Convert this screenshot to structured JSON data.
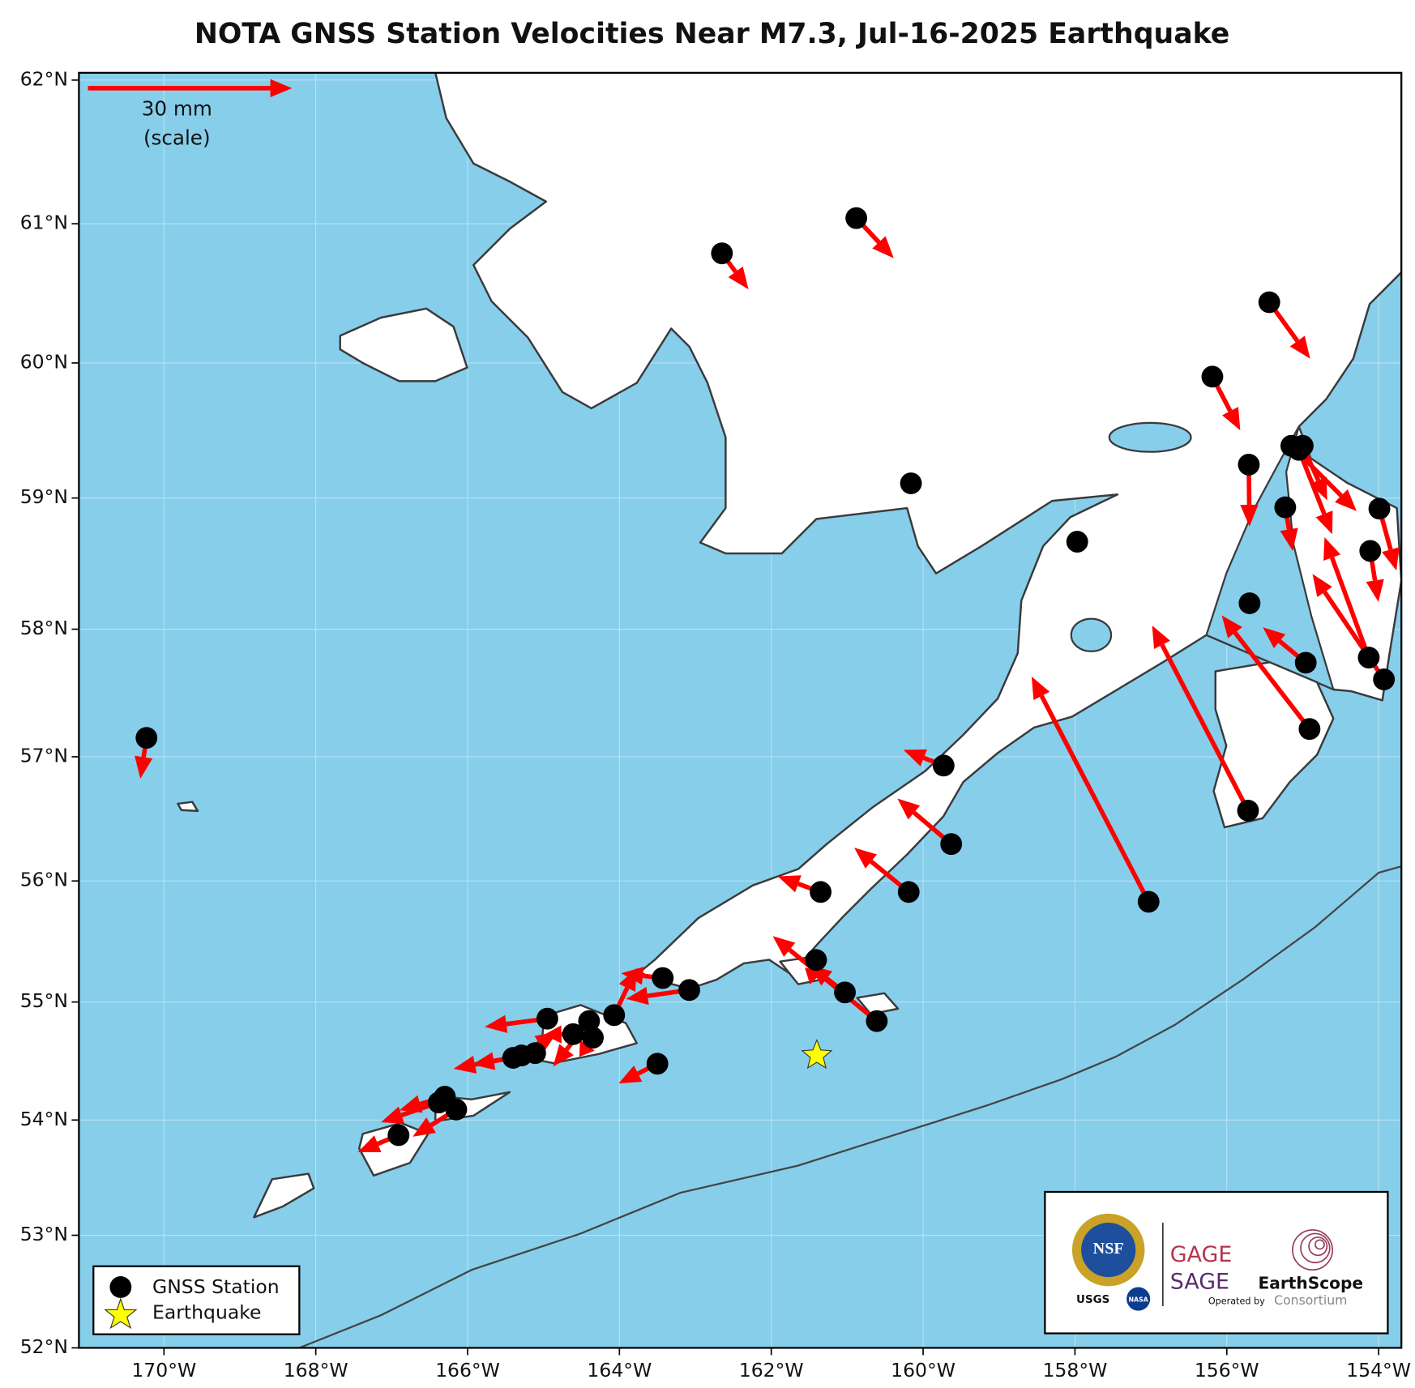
{
  "title": "NOTA GNSS Station Velocities Near M7.3, Jul-16-2025 Earthquake",
  "map": {
    "lonlim": [
      -171.12,
      -153.7
    ],
    "latlim": [
      52,
      62.05
    ],
    "projection": "mercator",
    "grid": true,
    "ocean_color": "#87ceeb",
    "land_color": "#ffffff",
    "arrow_color": "#ff0000",
    "station_color": "#000000",
    "lon_ticks": [
      {
        "value": -170,
        "label": "170°W"
      },
      {
        "value": -168,
        "label": "168°W"
      },
      {
        "value": -166,
        "label": "166°W"
      },
      {
        "value": -164,
        "label": "164°W"
      },
      {
        "value": -162,
        "label": "162°W"
      },
      {
        "value": -160,
        "label": "160°W"
      },
      {
        "value": -158,
        "label": "158°W"
      },
      {
        "value": -156,
        "label": "156°W"
      },
      {
        "value": -154,
        "label": "154°W"
      }
    ],
    "lat_ticks": [
      {
        "value": 52,
        "label": "52°N"
      },
      {
        "value": 53,
        "label": "53°N"
      },
      {
        "value": 54,
        "label": "54°N"
      },
      {
        "value": 55,
        "label": "55°N"
      },
      {
        "value": 56,
        "label": "56°N"
      },
      {
        "value": 57,
        "label": "57°N"
      },
      {
        "value": 58,
        "label": "58°N"
      },
      {
        "value": 59,
        "label": "59°N"
      },
      {
        "value": 60,
        "label": "60°N"
      },
      {
        "value": 61,
        "label": "61°N"
      },
      {
        "value": 62,
        "label": "62°N"
      }
    ]
  },
  "scale_arrow": {
    "value": 30,
    "label": "30 mm",
    "sublabel": "(scale)"
  },
  "stations": [
    {
      "lon": -170.23,
      "lat": 57.15,
      "ve": -0.9,
      "vn": -6.0
    },
    {
      "lon": -162.65,
      "lat": 60.79,
      "ve": 3.9,
      "vn": -5.3
    },
    {
      "lon": -160.88,
      "lat": 61.04,
      "ve": 5.5,
      "vn": -5.9
    },
    {
      "lon": -160.16,
      "lat": 59.11,
      "ve": 0,
      "vn": 0
    },
    {
      "lon": -157.97,
      "lat": 58.67,
      "ve": 0,
      "vn": 0
    },
    {
      "lon": -155.44,
      "lat": 60.44,
      "ve": 6.0,
      "vn": -8.3
    },
    {
      "lon": -156.19,
      "lat": 59.9,
      "ve": 4.1,
      "vn": -7.9
    },
    {
      "lon": -155.71,
      "lat": 59.25,
      "ve": 0.1,
      "vn": -9.1
    },
    {
      "lon": -155.23,
      "lat": 58.93,
      "ve": 1.1,
      "vn": -6.4
    },
    {
      "lon": -155.15,
      "lat": 59.39,
      "ve": 9.6,
      "vn": -9.6
    },
    {
      "lon": -155.05,
      "lat": 59.36,
      "ve": 4.9,
      "vn": -12.4
    },
    {
      "lon": -155.0,
      "lat": 59.39,
      "ve": 3.6,
      "vn": -8.0
    },
    {
      "lon": -153.99,
      "lat": 58.92,
      "ve": 2.5,
      "vn": -9.1
    },
    {
      "lon": -154.11,
      "lat": 58.6,
      "ve": 1.2,
      "vn": -7.5
    },
    {
      "lon": -155.7,
      "lat": 58.2,
      "ve": 0,
      "vn": 0
    },
    {
      "lon": -154.13,
      "lat": 57.78,
      "ve": -6.5,
      "vn": 17.7
    },
    {
      "lon": -153.93,
      "lat": 57.61,
      "ve": -10.5,
      "vn": 15.5
    },
    {
      "lon": -154.96,
      "lat": 57.74,
      "ve": -6.3,
      "vn": 5.2
    },
    {
      "lon": -154.91,
      "lat": 57.22,
      "ve": -12.9,
      "vn": 16.7
    },
    {
      "lon": -155.72,
      "lat": 56.57,
      "ve": -14.1,
      "vn": 27.2
    },
    {
      "lon": -157.03,
      "lat": 55.83,
      "ve": -17.2,
      "vn": 33.1
    },
    {
      "lon": -159.73,
      "lat": 56.93,
      "ve": -5.9,
      "vn": 2.3
    },
    {
      "lon": -159.63,
      "lat": 56.3,
      "ve": -7.9,
      "vn": 6.7
    },
    {
      "lon": -160.19,
      "lat": 55.91,
      "ve": -8.0,
      "vn": 6.5
    },
    {
      "lon": -161.35,
      "lat": 55.91,
      "ve": -6.3,
      "vn": 2.3
    },
    {
      "lon": -161.41,
      "lat": 55.35,
      "ve": -0.9,
      "vn": -3.6
    },
    {
      "lon": -161.03,
      "lat": 55.08,
      "ve": -5.2,
      "vn": 4.0
    },
    {
      "lon": -160.61,
      "lat": 54.84,
      "ve": -15.3,
      "vn": 12.5
    },
    {
      "lon": -163.08,
      "lat": 55.1,
      "ve": -9.3,
      "vn": -1.3
    },
    {
      "lon": -163.43,
      "lat": 55.2,
      "ve": -6.1,
      "vn": 0.7
    },
    {
      "lon": -164.07,
      "lat": 54.89,
      "ve": 3.3,
      "vn": 6.9
    },
    {
      "lon": -163.5,
      "lat": 54.48,
      "ve": -5.7,
      "vn": -2.9
    },
    {
      "lon": -164.4,
      "lat": 54.84,
      "ve": -5.3,
      "vn": -6.7
    },
    {
      "lon": -164.35,
      "lat": 54.7,
      "ve": -2.0,
      "vn": -2.8
    },
    {
      "lon": -164.61,
      "lat": 54.73,
      "ve": -4.3,
      "vn": -0.1
    },
    {
      "lon": -164.95,
      "lat": 54.86,
      "ve": -9.2,
      "vn": -1.2
    },
    {
      "lon": -165.11,
      "lat": 54.57,
      "ve": -12.0,
      "vn": -2.3
    },
    {
      "lon": -165.29,
      "lat": 54.55,
      "ve": 5.3,
      "vn": 3.5
    },
    {
      "lon": -165.4,
      "lat": 54.53,
      "ve": -6.0,
      "vn": -1.0
    },
    {
      "lon": -166.38,
      "lat": 54.15,
      "ve": -8.5,
      "vn": -2.9
    },
    {
      "lon": -166.3,
      "lat": 54.2,
      "ve": -6.7,
      "vn": -2.0
    },
    {
      "lon": -166.15,
      "lat": 54.09,
      "ve": -6.4,
      "vn": -4.0
    },
    {
      "lon": -166.91,
      "lat": 53.87,
      "ve": -6.0,
      "vn": -2.5
    }
  ],
  "earthquake": {
    "lon": -161.4,
    "lat": 54.55,
    "color": "#ffff00"
  },
  "legend": {
    "station": "GNSS Station",
    "earthquake": "Earthquake"
  },
  "logos": {
    "nsf": "NSF",
    "usgs": "USGS",
    "nasa": "NASA",
    "gage": "GAGE",
    "sage": "SAGE",
    "operated": "Operated by",
    "earthscope": "EarthScope",
    "consortium": "Consortium"
  }
}
